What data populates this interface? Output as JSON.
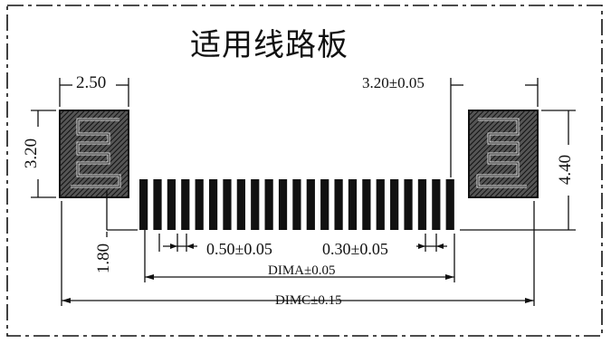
{
  "title": "适用线路板",
  "dims": {
    "pad_left_width": "2.50",
    "pad_left_height": "3.20",
    "pad_right_width": "3.20±0.05",
    "pad_right_height": "4.40",
    "offset": "1.80",
    "pitch": "0.50±0.05",
    "finger_width": "0.30±0.05",
    "dim_a": "DIMA±0.05",
    "dim_c": "DIMC±0.15"
  },
  "finger_count": 23,
  "colors": {
    "ink": "#111111",
    "background": "#ffffff"
  }
}
